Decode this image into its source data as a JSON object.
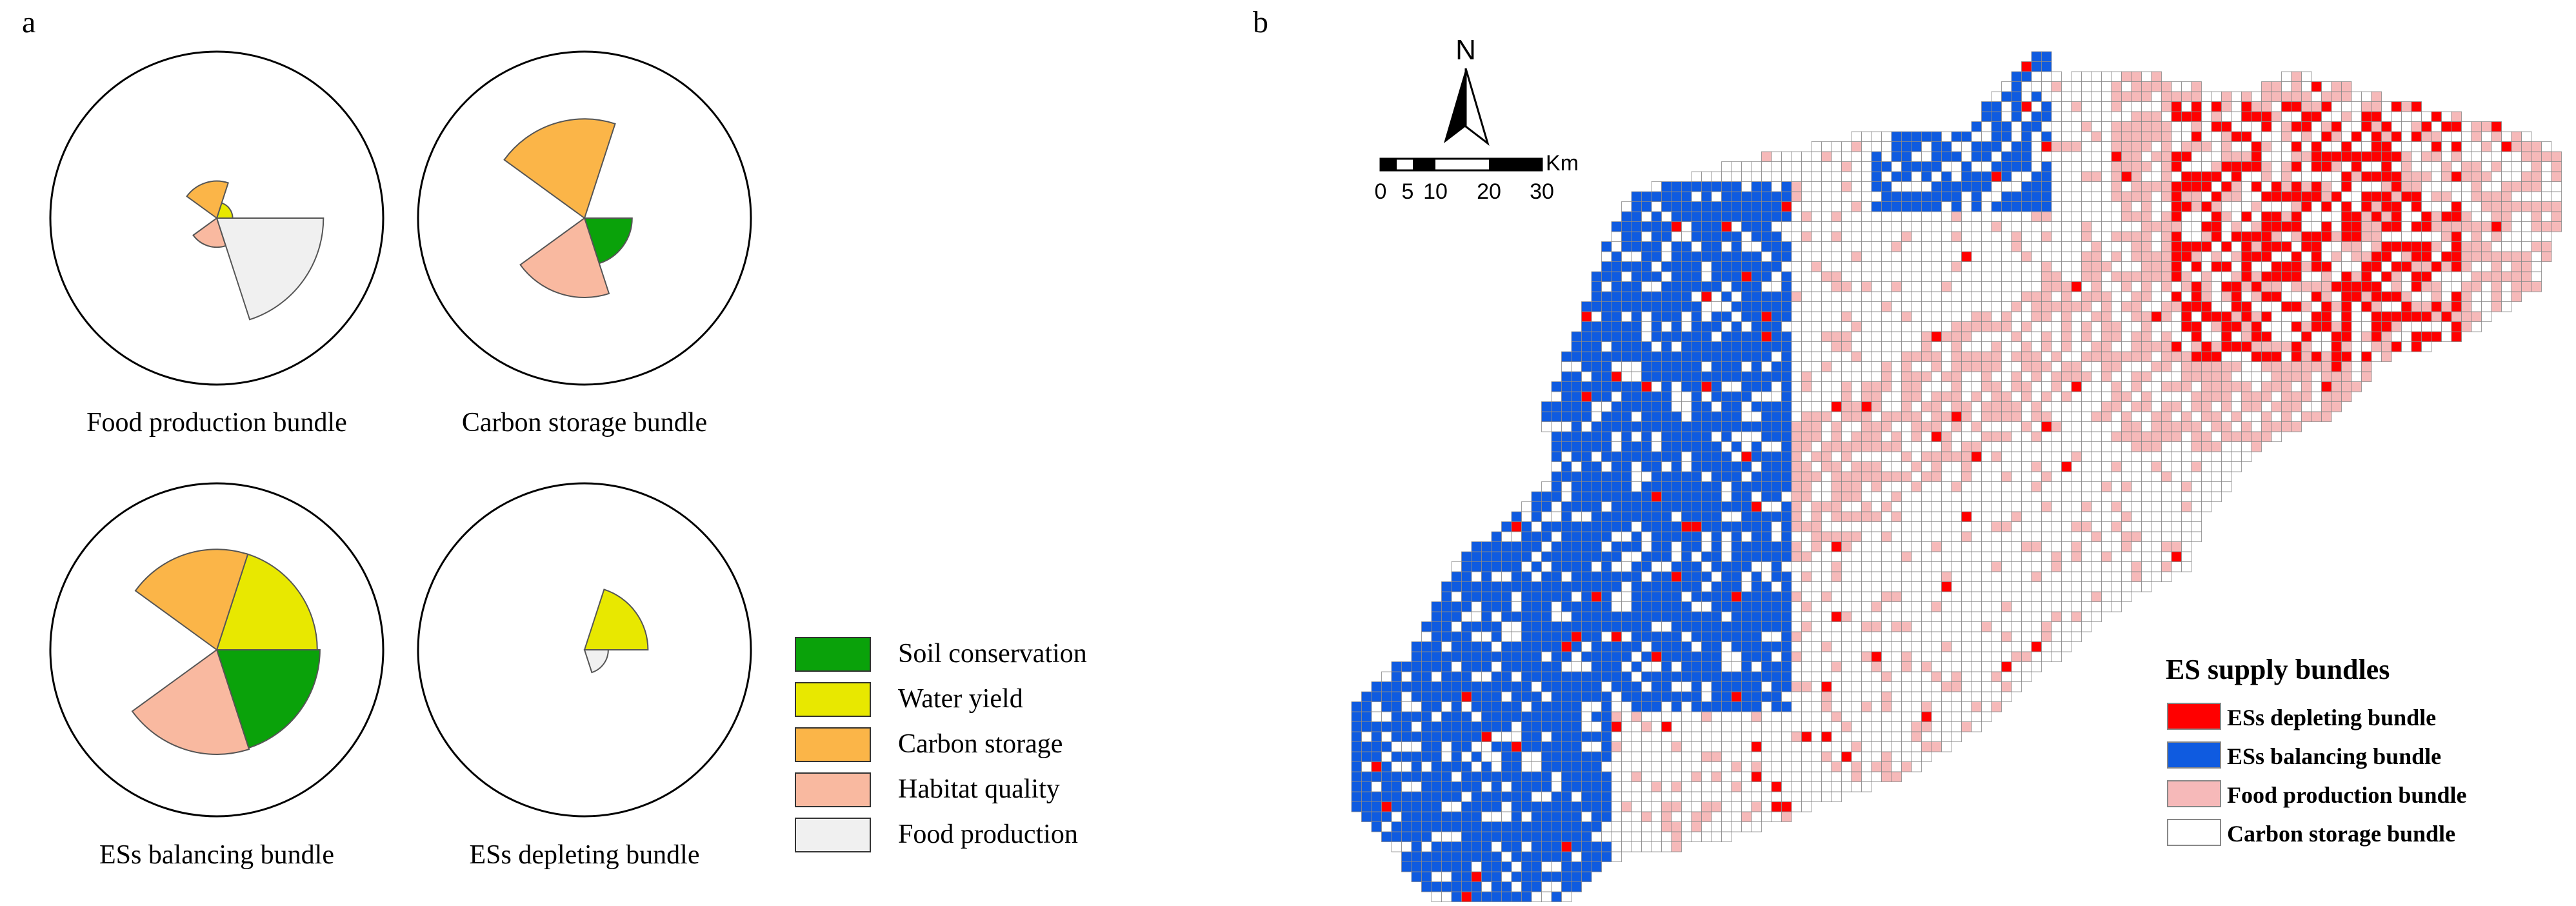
{
  "panel_labels": {
    "a": "a",
    "b": "b"
  },
  "chart_data": [
    {
      "type": "pie",
      "subtype": "rose",
      "title": "Food production bundle",
      "categories": [
        "Soil conservation",
        "Water yield",
        "Carbon storage",
        "Habitat quality",
        "Food production"
      ],
      "values": [
        0.08,
        0.12,
        0.28,
        0.22,
        0.72
      ]
    },
    {
      "type": "pie",
      "subtype": "rose",
      "title": "Carbon storage bundle",
      "categories": [
        "Soil conservation",
        "Water yield",
        "Carbon storage",
        "Habitat quality",
        "Food production"
      ],
      "values": [
        0.36,
        0.0,
        0.75,
        0.6,
        0.0
      ]
    },
    {
      "type": "pie",
      "subtype": "rose",
      "title": "ESs balancing bundle",
      "categories": [
        "Soil conservation",
        "Water yield",
        "Carbon storage",
        "Habitat quality",
        "Food production"
      ],
      "values": [
        0.78,
        0.76,
        0.76,
        0.79,
        0.0
      ]
    },
    {
      "type": "pie",
      "subtype": "rose",
      "title": "ESs depleting bundle",
      "categories": [
        "Soil conservation",
        "Water yield",
        "Carbon storage",
        "Habitat quality",
        "Food production"
      ],
      "values": [
        0.0,
        0.48,
        0.0,
        0.0,
        0.18
      ]
    }
  ],
  "legend_a": {
    "items": [
      {
        "label": "Soil conservation",
        "color": "#0aa20a"
      },
      {
        "label": "Water yield",
        "color": "#e8e800"
      },
      {
        "label": "Carbon storage",
        "color": "#fbb548"
      },
      {
        "label": "Habitat quality",
        "color": "#f9b9a0"
      },
      {
        "label": "Food production",
        "color": "#f0f0f0"
      }
    ]
  },
  "map": {
    "north_label": "N",
    "scale_unit": "Km",
    "scale_ticks": [
      "0",
      "5",
      "10",
      "20",
      "30"
    ],
    "legend_title": "ES supply bundles",
    "legend_items": [
      {
        "label": "ESs depleting bundle",
        "color": "#ff0000"
      },
      {
        "label": "ESs balancing bundle",
        "color": "#0f5be0"
      },
      {
        "label": "Food production bundle",
        "color": "#f6b9b9"
      },
      {
        "label": "Carbon storage bundle",
        "color": "#ffffff"
      }
    ]
  }
}
